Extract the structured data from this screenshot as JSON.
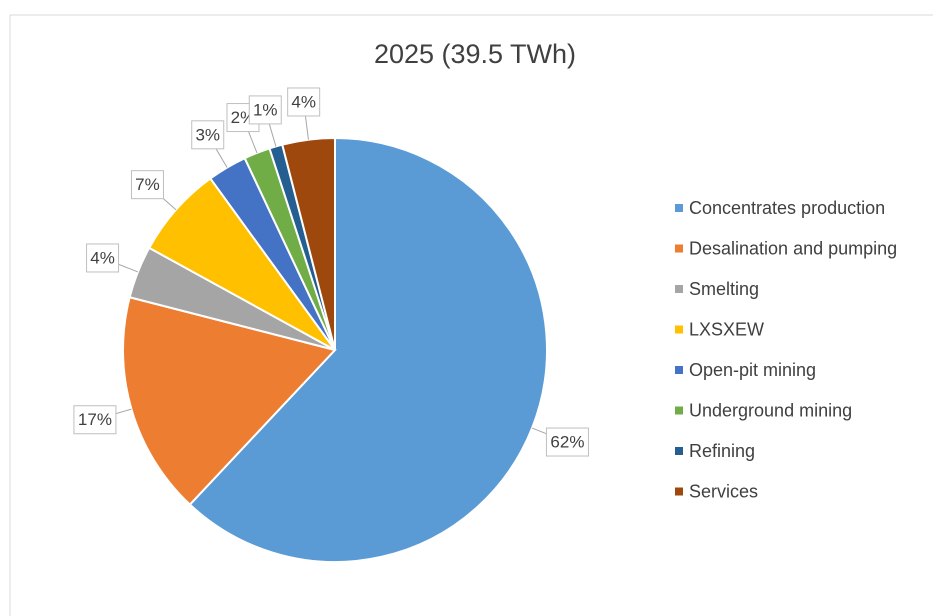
{
  "chart_data": {
    "type": "pie",
    "title": "2025 (39.5 TWh)",
    "categories": [
      "Concentrates production",
      "Desalination and pumping",
      "Smelting",
      "LXSXEW",
      "Open-pit mining",
      "Underground mining",
      "Refining",
      "Services"
    ],
    "values": [
      62,
      17,
      4,
      7,
      3,
      2,
      1,
      4
    ],
    "value_labels": [
      "62%",
      "17%",
      "4%",
      "7%",
      "3%",
      "2%",
      "1%",
      "4%"
    ],
    "colors": [
      "#5b9bd5",
      "#ed7d31",
      "#a5a5a5",
      "#ffc000",
      "#4472c4",
      "#70ad47",
      "#255e91",
      "#9e480e"
    ],
    "legend": "right"
  }
}
